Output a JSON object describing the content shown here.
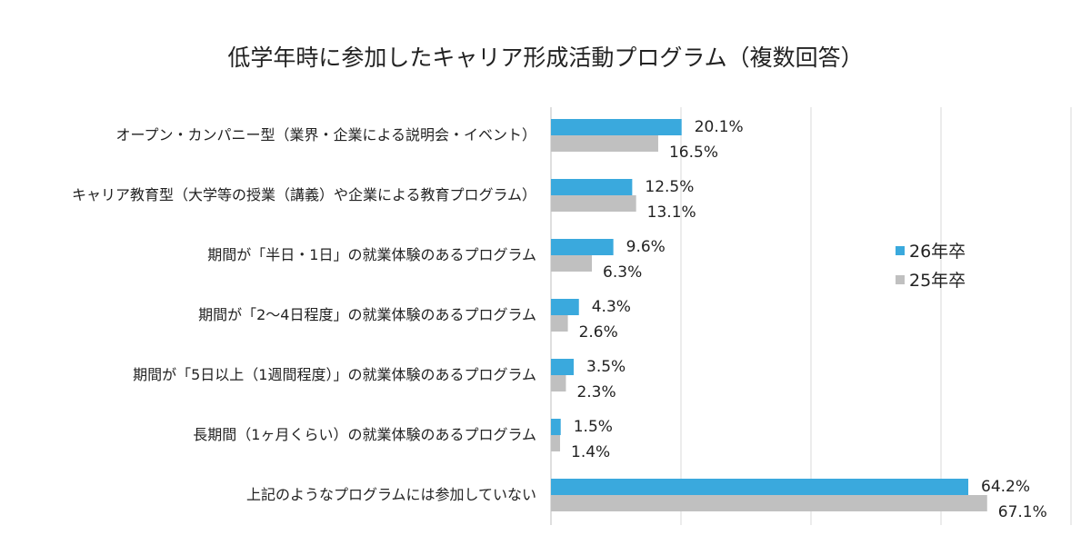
{
  "chart_data": {
    "type": "bar",
    "orientation": "horizontal",
    "title": "低学年時に参加したキャリア形成活動プログラム（複数回答）",
    "categories": [
      "オープン・カンパニー型（業界・企業による説明会・イベント）",
      "キャリア教育型（大学等の授業（講義）や企業による教育プログラム）",
      "期間が「半日・1日」の就業体験のあるプログラム",
      "期間が「2～4日程度」の就業体験のあるプログラム",
      "期間が「5日以上（1週間程度）」の就業体験のあるプログラム",
      "長期間（1ヶ月くらい）の就業体験のあるプログラム",
      "上記のようなプログラムには参加していない"
    ],
    "series": [
      {
        "name": "26年卒",
        "color": "#3aa9dd",
        "values": [
          20.1,
          12.5,
          9.6,
          4.3,
          3.5,
          1.5,
          64.2
        ],
        "labels": [
          "20.1%",
          "12.5%",
          "9.6%",
          "4.3%",
          "3.5%",
          "1.5%",
          "64.2%"
        ]
      },
      {
        "name": "25年卒",
        "color": "#c0c0c0",
        "values": [
          16.5,
          13.1,
          6.3,
          2.6,
          2.3,
          1.4,
          67.1
        ],
        "labels": [
          "16.5%",
          "13.1%",
          "6.3%",
          "2.6%",
          "2.3%",
          "1.4%",
          "67.1%"
        ]
      }
    ],
    "xlim": [
      0,
      80
    ],
    "grid": true,
    "legend": "right"
  }
}
